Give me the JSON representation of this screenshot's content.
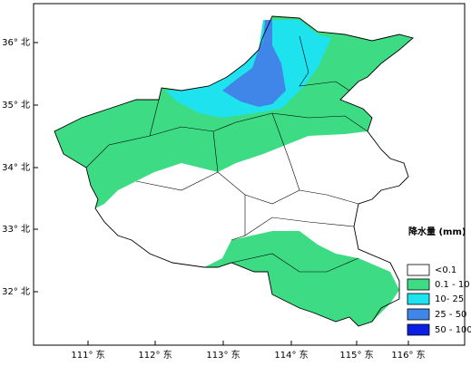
{
  "map": {
    "lon_labels": [
      "111° 东",
      "112° 东",
      "113° 东",
      "114° 东",
      "115° 东",
      "116° 东"
    ],
    "lat_labels": [
      "36° 北",
      "35° 北",
      "34° 北",
      "33° 北",
      "32° 北"
    ],
    "legend": {
      "title": "降水量 (mm)",
      "items": [
        {
          "label": "<0.1",
          "color": "#ffffff"
        },
        {
          "label": "0.1 - 10",
          "color": "#3ddc84"
        },
        {
          "label": "10- 25",
          "color": "#1ee3ee"
        },
        {
          "label": "25 - 50",
          "color": "#3f86e8"
        },
        {
          "label": "50 - 100",
          "color": "#0a1ee6"
        }
      ]
    }
  }
}
